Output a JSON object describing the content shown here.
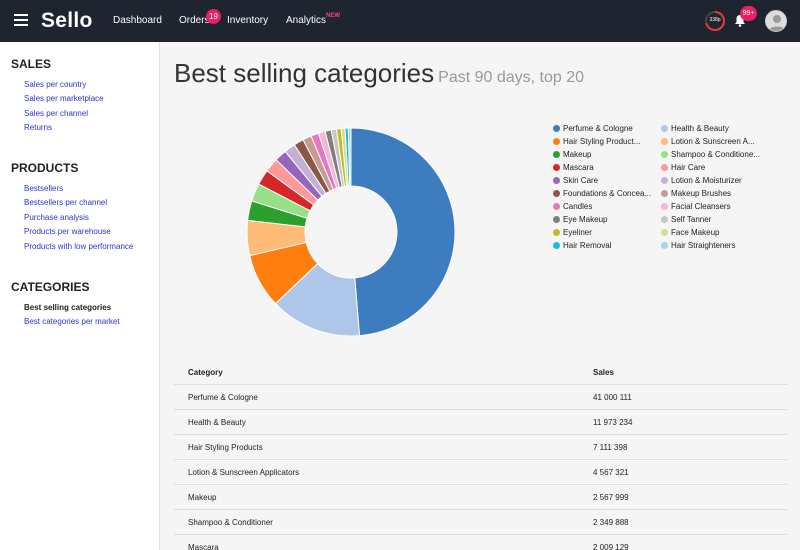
{
  "topbar": {
    "brand": "Sello",
    "nav": [
      "Dashboard",
      "Orders",
      "Inventory",
      "Analytics"
    ],
    "orders_badge": "19",
    "analytics_tag": "NEW",
    "progress_label": "338p",
    "notif_badge": "99+"
  },
  "sidebar": {
    "sections": [
      {
        "heading": "SALES",
        "links": [
          "Sales per country",
          "Sales per marketplace",
          "Sales per channel",
          "Returns"
        ]
      },
      {
        "heading": "PRODUCTS",
        "links": [
          "Bestsellers",
          "Bestsellers per channel",
          "Purchase analysis",
          "Products per warehouse",
          "Products with low performance"
        ]
      },
      {
        "heading": "CATEGORIES",
        "links": [
          "Best selling categories",
          "Best categories per market"
        ]
      }
    ]
  },
  "main": {
    "title": "Best selling categories",
    "subtitle": "Past 90 days, top 20"
  },
  "legend": [
    {
      "label": "Perfume & Cologne",
      "color": "#3e7cc0"
    },
    {
      "label": "Health & Beauty",
      "color": "#aec7e8"
    },
    {
      "label": "Hair Styling Product...",
      "color": "#ff7f0e"
    },
    {
      "label": "Lotion & Sunscreen A...",
      "color": "#ffbb78"
    },
    {
      "label": "Makeup",
      "color": "#2ca02c"
    },
    {
      "label": "Shampoo & Conditione...",
      "color": "#98df8a"
    },
    {
      "label": "Mascara",
      "color": "#d62728"
    },
    {
      "label": "Hair Care",
      "color": "#ff9896"
    },
    {
      "label": "Skin Care",
      "color": "#9467bd"
    },
    {
      "label": "Lotion & Moisturizer",
      "color": "#c5b0d5"
    },
    {
      "label": "Foundations & Concea...",
      "color": "#8c564b"
    },
    {
      "label": "Makeup Brushes",
      "color": "#c49c94"
    },
    {
      "label": "Candles",
      "color": "#e377c2"
    },
    {
      "label": "Facial Cleansers",
      "color": "#f7b6d2"
    },
    {
      "label": "Eye Makeup",
      "color": "#7f7f7f"
    },
    {
      "label": "Self Tanner",
      "color": "#c7c7c7"
    },
    {
      "label": "Eyeliner",
      "color": "#bcbd22"
    },
    {
      "label": "Face Makeup",
      "color": "#dbdb8d"
    },
    {
      "label": "Hair Removal",
      "color": "#17becf"
    },
    {
      "label": "Hair Straighteners",
      "color": "#9edae5"
    }
  ],
  "chart_data": {
    "type": "pie",
    "categories": [
      "Perfume & Cologne",
      "Health & Beauty",
      "Hair Styling Products",
      "Lotion & Sunscreen Applicators",
      "Makeup",
      "Shampoo & Conditioner",
      "Mascara",
      "Hair Care",
      "Skin Care",
      "Lotion & Moisturizer",
      "Foundations & Concealers",
      "Makeup Brushes",
      "Candles",
      "Facial Cleansers",
      "Eye Makeup",
      "Self Tanner",
      "Eyeliner",
      "Face Makeup",
      "Hair Removal",
      "Hair Straighteners"
    ],
    "values": [
      41000111,
      11973234,
      7111398,
      4567321,
      2567999,
      2349888,
      2009129,
      1850000,
      1600000,
      1450000,
      1300000,
      1150000,
      1000000,
      900000,
      800000,
      700000,
      600000,
      500000,
      420000,
      350000
    ],
    "title": "Best selling categories"
  },
  "table": {
    "headers": [
      "Category",
      "Sales"
    ],
    "rows": [
      [
        "Perfume & Cologne",
        "41 000 111"
      ],
      [
        "Health & Beauty",
        "11 973 234"
      ],
      [
        "Hair Styling Products",
        "7 111 398"
      ],
      [
        "Lotion & Sunscreen Applicators",
        "4 567 321"
      ],
      [
        "Makeup",
        "2 567 999"
      ],
      [
        "Shampoo & Conditioner",
        "2 349 888"
      ],
      [
        "Mascara",
        "2 009 129"
      ]
    ]
  }
}
